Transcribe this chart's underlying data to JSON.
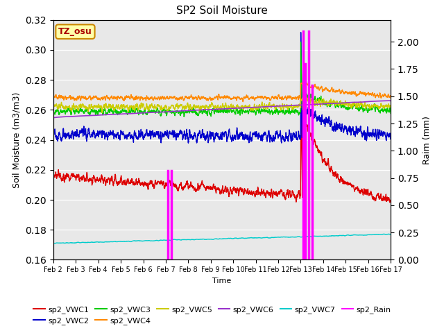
{
  "title": "SP2 Soil Moisture",
  "xlabel": "Time",
  "ylabel_left": "Soil Moisture (m3/m3)",
  "ylabel_right": "Raim (mm)",
  "ylim_left": [
    0.16,
    0.32
  ],
  "ylim_right": [
    0.0,
    2.2
  ],
  "xlim": [
    0,
    15
  ],
  "xtick_labels": [
    "Feb 2",
    "Feb 3",
    "Feb 4",
    "Feb 5",
    "Feb 6",
    "Feb 7",
    "Feb 8",
    "Feb 9",
    "Feb 10",
    "Feb 11",
    "Feb 12",
    "Feb 13",
    "Feb 14",
    "Feb 15",
    "Feb 16",
    "Feb 17"
  ],
  "colors": {
    "VWC1": "#dd0000",
    "VWC2": "#0000cc",
    "VWC3": "#00cc00",
    "VWC4": "#ff8800",
    "VWC5": "#cccc00",
    "VWC6": "#9933cc",
    "VWC7": "#00cccc",
    "Rain": "#ff00ff"
  },
  "background_color": "#e8e8e8",
  "tz_label": "TZ_osu",
  "tz_box_color": "#ffffaa",
  "tz_text_color": "#aa0000",
  "rain_spikes": [
    {
      "t": 5.1,
      "v": 0.82
    },
    {
      "t": 5.25,
      "v": 0.82
    },
    {
      "t": 11.1,
      "v": 2.1
    },
    {
      "t": 11.2,
      "v": 1.8
    },
    {
      "t": 11.35,
      "v": 2.1
    },
    {
      "t": 11.5,
      "v": 1.6
    }
  ]
}
